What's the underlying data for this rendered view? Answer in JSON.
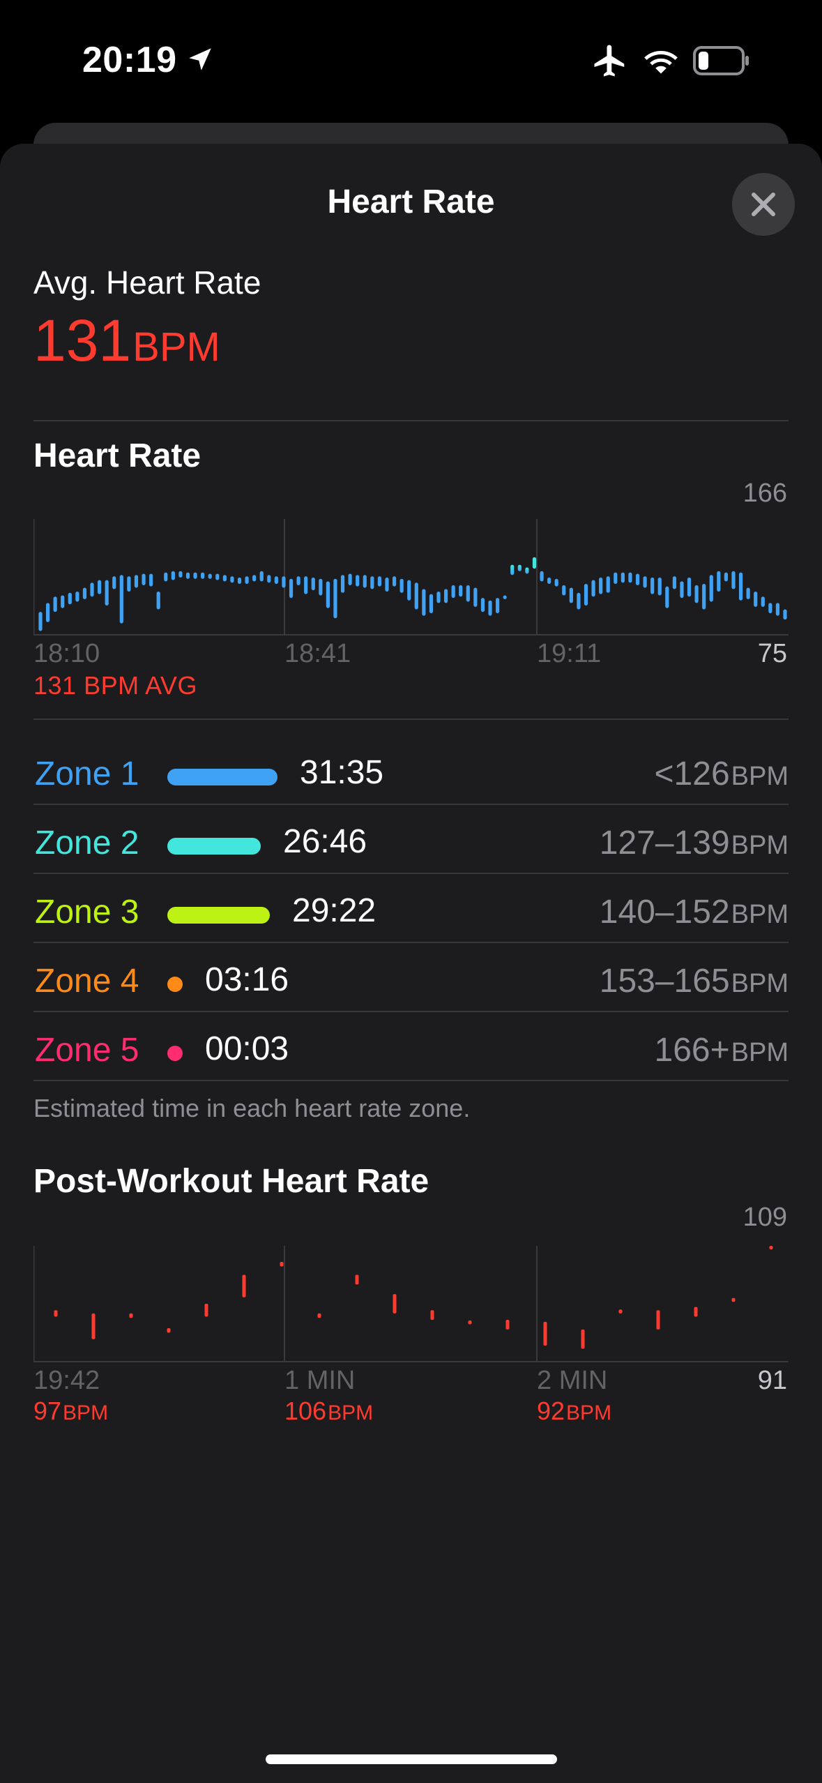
{
  "status_bar": {
    "time": "20:19",
    "icons": [
      "location-arrow-icon",
      "airplane-icon",
      "wifi-icon",
      "battery-icon"
    ]
  },
  "sheet": {
    "title": "Heart Rate",
    "close_icon": "close-icon"
  },
  "summary": {
    "label": "Avg. Heart Rate",
    "value": "131",
    "unit": "BPM",
    "color": "#ff3b30"
  },
  "heart_rate_chart": {
    "title": "Heart Rate",
    "max_label": "166",
    "min_label": "75",
    "ticks": [
      "18:10",
      "18:41",
      "19:11"
    ],
    "avg_caption": "131 BPM AVG"
  },
  "zones": {
    "items": [
      {
        "name": "Zone 1",
        "time": "31:35",
        "range": "<126",
        "unit": "BPM",
        "color": "#3fa2f5",
        "fraction": 1.0
      },
      {
        "name": "Zone 2",
        "time": "26:46",
        "range": "127–139",
        "unit": "BPM",
        "color": "#43e6dd",
        "fraction": 0.847
      },
      {
        "name": "Zone 3",
        "time": "29:22",
        "range": "140–152",
        "unit": "BPM",
        "color": "#bdf214",
        "fraction": 0.929
      },
      {
        "name": "Zone 4",
        "time": "03:16",
        "range": "153–165",
        "unit": "BPM",
        "color": "#ff8a18",
        "fraction": 0.103
      },
      {
        "name": "Zone 5",
        "time": "00:03",
        "range": "166+",
        "unit": "BPM",
        "color": "#ff2d6f",
        "fraction": 0.0016
      }
    ],
    "caption": "Estimated time in each heart rate zone."
  },
  "post_workout": {
    "title": "Post-Workout Heart Rate",
    "max_label": "109",
    "min_label": "91",
    "ticks": [
      "19:42",
      "1 MIN",
      "2 MIN"
    ],
    "values": [
      {
        "value": "97",
        "unit": "BPM"
      },
      {
        "value": "106",
        "unit": "BPM"
      },
      {
        "value": "92",
        "unit": "BPM"
      }
    ],
    "color": "#ff3b30"
  },
  "chart_data": [
    {
      "type": "bar",
      "title": "Heart Rate",
      "ylim": [
        75,
        166
      ],
      "x_ticks": [
        "18:10",
        "18:41",
        "19:11"
      ],
      "series": [
        {
          "ranges": [
            [
              78,
              93
            ],
            [
              85,
              100
            ],
            [
              93,
              105
            ],
            [
              96,
              106
            ],
            [
              99,
              108
            ],
            [
              101,
              109
            ],
            [
              103,
              112
            ],
            [
              105,
              116
            ],
            [
              107,
              118
            ],
            [
              98,
              118
            ],
            [
              111,
              121
            ],
            [
              84,
              122
            ],
            [
              109,
              121
            ],
            [
              112,
              122
            ],
            [
              114,
              123
            ],
            [
              113,
              123
            ],
            [
              95,
              109
            ],
            [
              117,
              124
            ],
            [
              118,
              125
            ],
            [
              120,
              125
            ],
            [
              119,
              124
            ],
            [
              119,
              124
            ],
            [
              119,
              124
            ],
            [
              119,
              123
            ],
            [
              118,
              123
            ],
            [
              117,
              122
            ],
            [
              116,
              121
            ],
            [
              115,
              120
            ],
            [
              115,
              121
            ],
            [
              117,
              122
            ],
            [
              117,
              125
            ],
            [
              116,
              122
            ],
            [
              115,
              121
            ],
            [
              112,
              121
            ],
            [
              104,
              119
            ],
            [
              114,
              121
            ],
            [
              107,
              121
            ],
            [
              110,
              120
            ],
            [
              106,
              119
            ],
            [
              96,
              117
            ],
            [
              88,
              119
            ],
            [
              108,
              122
            ],
            [
              114,
              123
            ],
            [
              113,
              122
            ],
            [
              112,
              122
            ],
            [
              111,
              121
            ],
            [
              113,
              121
            ],
            [
              109,
              120
            ],
            [
              113,
              121
            ],
            [
              108,
              119
            ],
            [
              102,
              118
            ],
            [
              95,
              116
            ],
            [
              90,
              111
            ],
            [
              92,
              107
            ],
            [
              100,
              109
            ],
            [
              100,
              111
            ],
            [
              104,
              114
            ],
            [
              105,
              114
            ],
            [
              101,
              114
            ],
            [
              97,
              112
            ],
            [
              93,
              104
            ],
            [
              90,
              102
            ],
            [
              92,
              104
            ],
            [
              103,
              106
            ],
            [
              122,
              130
            ],
            [
              125,
              130
            ],
            [
              123,
              128
            ],
            [
              127,
              136
            ],
            [
              117,
              125
            ],
            [
              115,
              120
            ],
            [
              113,
              119
            ],
            [
              106,
              114
            ],
            [
              100,
              112
            ],
            [
              95,
              108
            ],
            [
              98,
              115
            ],
            [
              105,
              118
            ],
            [
              107,
              120
            ],
            [
              108,
              121
            ],
            [
              115,
              124
            ],
            [
              116,
              124
            ],
            [
              116,
              124
            ],
            [
              114,
              123
            ],
            [
              112,
              121
            ],
            [
              107,
              120
            ],
            [
              106,
              120
            ],
            [
              96,
              113
            ],
            [
              111,
              121
            ],
            [
              104,
              117
            ],
            [
              105,
              120
            ],
            [
              100,
              114
            ],
            [
              95,
              115
            ],
            [
              101,
              122
            ],
            [
              109,
              125
            ],
            [
              117,
              124
            ],
            [
              111,
              125
            ],
            [
              102,
              124
            ],
            [
              103,
              112
            ],
            [
              97,
              109
            ],
            [
              97,
              105
            ],
            [
              92,
              100
            ],
            [
              90,
              100
            ],
            [
              87,
              95
            ]
          ]
        }
      ]
    },
    {
      "type": "bar",
      "title": "Post-Workout Heart Rate",
      "ylim": [
        91,
        109
      ],
      "x_ticks": [
        "19:42",
        "1 MIN",
        "2 MIN"
      ],
      "series": [
        {
          "ranges": [
            [
              98,
              99
            ],
            [
              94.5,
              98.5
            ],
            [
              97.8,
              98.5
            ],
            [
              95.5,
              96.2
            ],
            [
              98,
              100
            ],
            [
              101,
              104.5
            ],
            [
              105.8,
              106.5
            ],
            [
              97.8,
              98.5
            ],
            [
              103,
              104.5
            ],
            [
              98.5,
              101.5
            ],
            [
              97.5,
              99
            ],
            [
              96.8,
              97.4
            ],
            [
              96,
              97.5
            ],
            [
              93.5,
              97.2
            ],
            [
              93,
              96
            ],
            [
              98.5,
              99.1
            ],
            [
              96,
              99
            ],
            [
              98,
              99.5
            ],
            [
              100.3,
              100.9
            ],
            [
              108.5,
              109
            ]
          ]
        }
      ]
    }
  ]
}
